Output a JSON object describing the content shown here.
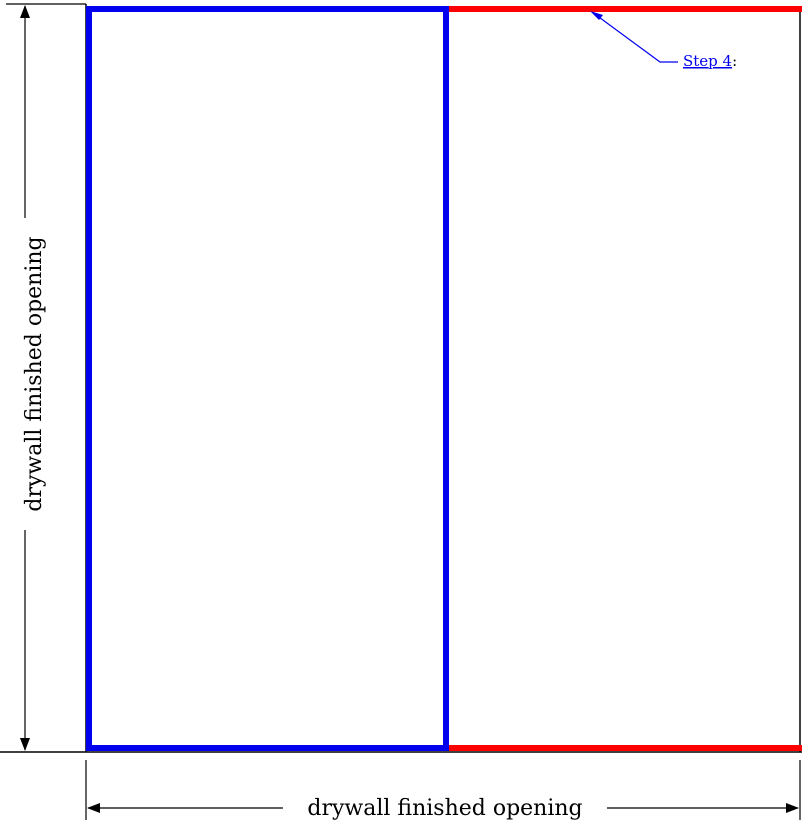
{
  "diagram": {
    "dimension_bottom_label": "drywall finished opening",
    "dimension_left_label": "drywall finished opening",
    "callout": {
      "link_text": "Step 4",
      "suffix": ":"
    },
    "colors": {
      "panel_outline": "#0000ee",
      "track_line": "#ff0000",
      "opening_outline": "#000000",
      "dimension_line": "#000000",
      "link": "#0000ee"
    }
  }
}
